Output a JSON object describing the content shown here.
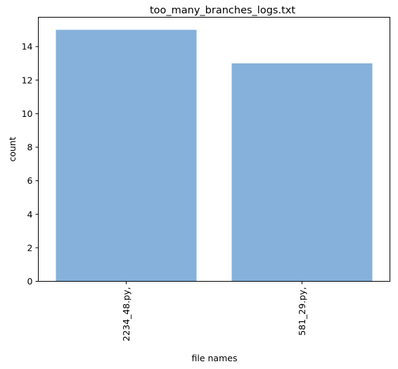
{
  "chart_data": {
    "type": "bar",
    "title": "too_many_branches_logs.txt",
    "xlabel": "file names",
    "ylabel": "count",
    "categories": [
      "2234_48.py,",
      "581_29.py,"
    ],
    "values": [
      15,
      13
    ],
    "ylim": [
      0,
      15.75
    ],
    "yticks": [
      0,
      2,
      4,
      6,
      8,
      10,
      12,
      14
    ],
    "xtick_rotation": 90,
    "grid": false,
    "legend": "none",
    "bar_color": "#85b1db"
  }
}
